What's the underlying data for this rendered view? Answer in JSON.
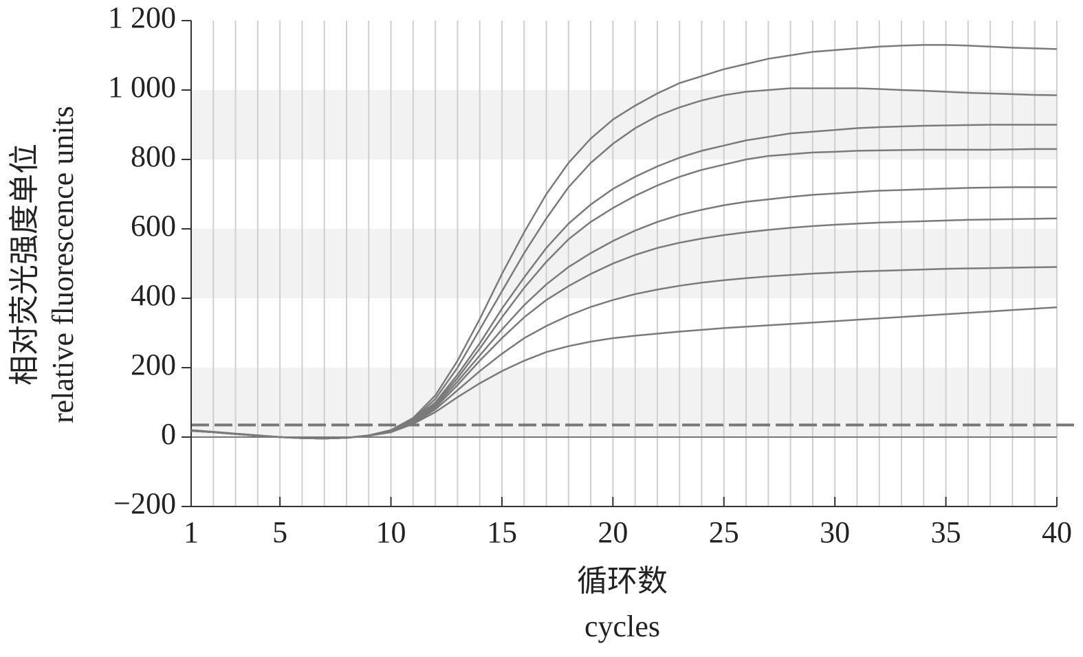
{
  "chart_data": {
    "type": "line",
    "y_label": [
      "相对荧光强度单位",
      "relative fluorescence units"
    ],
    "x_label": [
      "循环数",
      "cycles"
    ],
    "x": [
      1,
      2,
      3,
      4,
      5,
      6,
      7,
      8,
      9,
      10,
      11,
      12,
      13,
      14,
      15,
      16,
      17,
      18,
      19,
      20,
      21,
      22,
      23,
      24,
      25,
      26,
      27,
      28,
      29,
      30,
      31,
      32,
      33,
      34,
      35,
      36,
      37,
      38,
      39,
      40
    ],
    "series": [
      {
        "color": "#7a7a7a",
        "values": [
          20,
          15,
          10,
          5,
          0,
          -3,
          -4,
          -2,
          5,
          20,
          55,
          120,
          220,
          340,
          470,
          590,
          700,
          790,
          860,
          915,
          955,
          990,
          1020,
          1040,
          1060,
          1075,
          1090,
          1100,
          1110,
          1115,
          1120,
          1125,
          1128,
          1130,
          1130,
          1128,
          1125,
          1122,
          1120,
          1118
        ]
      },
      {
        "color": "#7a7a7a",
        "values": [
          20,
          15,
          10,
          5,
          0,
          -3,
          -4,
          -2,
          4,
          18,
          50,
          110,
          200,
          310,
          420,
          530,
          630,
          720,
          790,
          845,
          890,
          925,
          950,
          970,
          985,
          995,
          1000,
          1005,
          1005,
          1005,
          1005,
          1003,
          1000,
          998,
          995,
          992,
          990,
          988,
          986,
          985
        ]
      },
      {
        "color": "#7a7a7a",
        "values": [
          18,
          14,
          9,
          4,
          0,
          -3,
          -4,
          -2,
          4,
          17,
          48,
          100,
          180,
          270,
          370,
          460,
          545,
          615,
          670,
          715,
          750,
          780,
          805,
          825,
          840,
          855,
          865,
          875,
          880,
          885,
          890,
          893,
          895,
          897,
          898,
          899,
          900,
          900,
          900,
          900
        ]
      },
      {
        "color": "#7a7a7a",
        "values": [
          18,
          14,
          9,
          4,
          0,
          -3,
          -4,
          -2,
          4,
          16,
          45,
          95,
          170,
          255,
          345,
          430,
          505,
          570,
          620,
          660,
          695,
          725,
          750,
          770,
          785,
          800,
          810,
          815,
          820,
          822,
          825,
          826,
          827,
          828,
          828,
          828,
          828,
          829,
          830,
          830
        ]
      },
      {
        "color": "#7a7a7a",
        "values": [
          18,
          14,
          9,
          4,
          0,
          -3,
          -4,
          -2,
          4,
          16,
          44,
          90,
          160,
          235,
          310,
          380,
          440,
          490,
          530,
          565,
          595,
          620,
          640,
          655,
          668,
          678,
          685,
          692,
          698,
          702,
          706,
          710,
          712,
          714,
          716,
          718,
          719,
          720,
          720,
          720
        ]
      },
      {
        "color": "#7a7a7a",
        "values": [
          18,
          14,
          9,
          4,
          0,
          -3,
          -4,
          -2,
          4,
          15,
          42,
          85,
          150,
          220,
          285,
          345,
          395,
          435,
          470,
          500,
          525,
          545,
          560,
          572,
          582,
          590,
          597,
          603,
          608,
          612,
          615,
          618,
          620,
          622,
          624,
          626,
          627,
          628,
          629,
          630
        ]
      },
      {
        "color": "#7a7a7a",
        "values": [
          18,
          14,
          9,
          4,
          0,
          -3,
          -4,
          -2,
          4,
          15,
          40,
          80,
          135,
          190,
          240,
          285,
          320,
          350,
          375,
          395,
          412,
          425,
          436,
          445,
          452,
          458,
          463,
          467,
          471,
          474,
          477,
          479,
          481,
          483,
          485,
          486,
          487,
          488,
          489,
          490
        ]
      },
      {
        "color": "#7a7a7a",
        "values": [
          18,
          14,
          9,
          4,
          0,
          -3,
          -4,
          -2,
          4,
          14,
          38,
          72,
          115,
          155,
          190,
          220,
          245,
          262,
          275,
          285,
          292,
          298,
          304,
          309,
          314,
          318,
          322,
          326,
          330,
          334,
          338,
          342,
          346,
          350,
          354,
          358,
          362,
          366,
          370,
          374
        ]
      }
    ],
    "threshold": 35,
    "xlim": [
      1,
      40
    ],
    "xticks": [
      1,
      5,
      10,
      15,
      20,
      25,
      30,
      35,
      40
    ],
    "ylim": [
      -200,
      1200
    ],
    "yticks": [
      {
        "value": -200,
        "label": "−200"
      },
      0,
      200,
      400,
      600,
      800,
      {
        "value": 1000,
        "label": "1 000"
      },
      {
        "value": 1200,
        "label": "1 200"
      }
    ],
    "grid": true,
    "shaded_bands": true
  }
}
